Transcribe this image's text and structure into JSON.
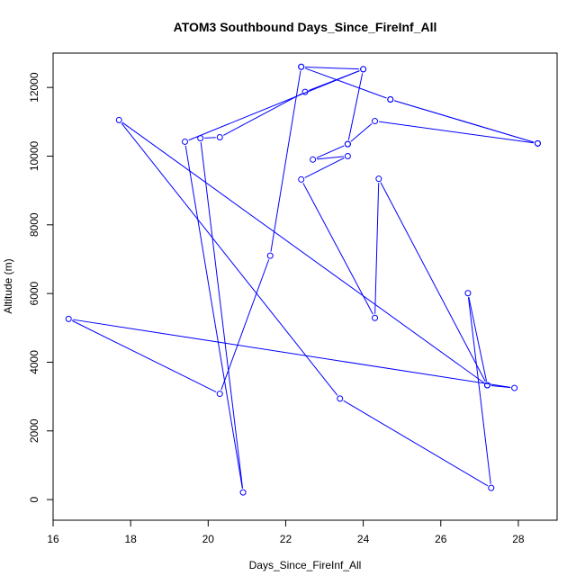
{
  "chart_data": {
    "type": "line",
    "title": "ATOM3 Southbound Days_Since_FireInf_All",
    "xlabel": "Days_Since_FireInf_All",
    "ylabel": "Altitude (m)",
    "xlim": [
      16,
      29
    ],
    "ylim": [
      -600,
      13000
    ],
    "xticks": [
      16,
      18,
      20,
      22,
      24,
      26,
      28
    ],
    "yticks": [
      0,
      2000,
      4000,
      6000,
      8000,
      10000,
      12000
    ],
    "line_color": "#0000ff",
    "marker": "open-circle",
    "grid": false,
    "series": [
      {
        "x": [
          24.7,
          28.5,
          24.3,
          23.6,
          24.0,
          22.5,
          20.3,
          19.8,
          20.9,
          19.4,
          24.0,
          22.4,
          24.7,
          28.5
        ],
        "y": [
          11650,
          10370,
          11020,
          10350,
          12530,
          11870,
          10550,
          10520,
          210,
          10420,
          12530,
          12600,
          11650,
          10370
        ]
      },
      {
        "x": [
          23.6,
          22.7,
          23.6,
          22.4,
          24.3,
          24.4,
          27.2,
          17.7,
          23.4,
          27.3,
          26.7,
          27.2,
          27.9,
          16.4,
          20.3,
          21.6,
          22.4
        ],
        "y": [
          10350,
          9900,
          10000,
          9320,
          5290,
          9340,
          3330,
          11050,
          2940,
          340,
          6010,
          3330,
          3250,
          5260,
          3080,
          7100,
          12600
        ]
      }
    ]
  }
}
